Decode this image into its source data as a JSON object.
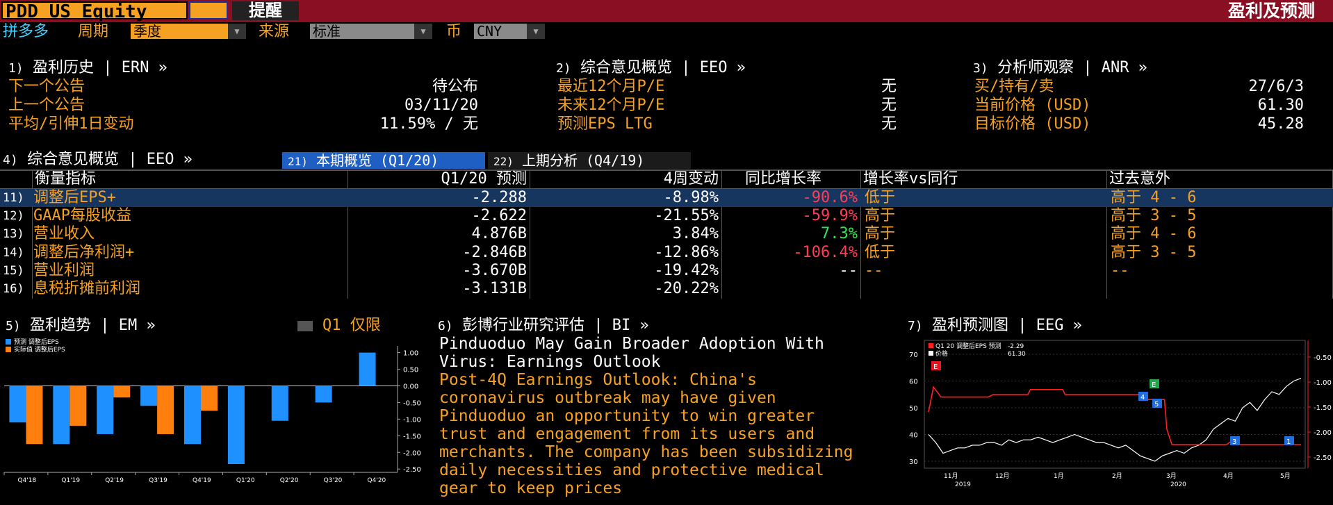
{
  "header": {
    "ticker": "PDD US Equity",
    "alert_button": "提醒",
    "page_title": "盈利及预测"
  },
  "filters": {
    "company": "拼多多",
    "period_label": "周期",
    "period_value": "季度",
    "source_label": "来源",
    "source_value": "标准",
    "currency_label": "币",
    "currency_value": "CNY"
  },
  "section1": {
    "num": "1)",
    "title": "盈利历史",
    "code": "ERN »",
    "rows": [
      {
        "label": "下一个公告",
        "value": "待公布"
      },
      {
        "label": "上一个公告",
        "value": "03/11/20"
      },
      {
        "label": "平均/引伸1日变动",
        "value": "11.59% / 无"
      }
    ]
  },
  "section2": {
    "num": "2)",
    "title": "综合意见概览",
    "code": "EEO »",
    "rows": [
      {
        "label": "最近12个月P/E",
        "value": "无"
      },
      {
        "label": "未来12个月P/E",
        "value": "无"
      },
      {
        "label": "预测EPS LTG",
        "value": "无"
      }
    ]
  },
  "section3": {
    "num": "3)",
    "title": "分析师观察",
    "code": "ANR »",
    "rows": [
      {
        "label": "买/持有/卖",
        "value": "27/6/3"
      },
      {
        "label": "当前价格 (USD)",
        "value": "61.30"
      },
      {
        "label": "目标价格 (USD)",
        "value": "45.28"
      }
    ]
  },
  "section4": {
    "num": "4)",
    "title": "综合意见概览",
    "code": "EEO »",
    "tabs": [
      {
        "num": "21)",
        "label": "本期概览 (Q1/20)"
      },
      {
        "num": "22)",
        "label": "上期分析 (Q4/19)"
      }
    ],
    "columns": [
      "衡量指标",
      "Q1/20 预测",
      "4周变动",
      "同比增长率",
      "增长率vs同行",
      "过去意外"
    ],
    "rows": [
      {
        "num": "11)",
        "metric": "调整后EPS+",
        "forecast": "-2.288",
        "chg4w": "-8.98%",
        "yoy": "-90.6%",
        "yoy_color": "red",
        "vs_peer": "低于",
        "surprise": "高于 4 - 6"
      },
      {
        "num": "12)",
        "metric": "GAAP每股收益",
        "forecast": "-2.622",
        "chg4w": "-21.55%",
        "yoy": "-59.9%",
        "yoy_color": "red",
        "vs_peer": "高于",
        "surprise": "高于 3 - 5"
      },
      {
        "num": "13)",
        "metric": "营业收入",
        "forecast": "4.876B",
        "chg4w": "3.84%",
        "yoy": "7.3%",
        "yoy_color": "green",
        "vs_peer": "高于",
        "surprise": "高于 4 - 6"
      },
      {
        "num": "14)",
        "metric": "调整后净利润+",
        "forecast": "-2.846B",
        "chg4w": "-12.86%",
        "yoy": "-106.4%",
        "yoy_color": "red",
        "vs_peer": "低于",
        "surprise": "高于 3 - 5"
      },
      {
        "num": "15)",
        "metric": "营业利润",
        "forecast": "-3.670B",
        "chg4w": "-19.42%",
        "yoy": "--",
        "yoy_color": "white",
        "vs_peer": "--",
        "surprise": "--"
      },
      {
        "num": "16)",
        "metric": "息税折摊前利润",
        "forecast": "-3.131B",
        "chg4w": "-20.22%",
        "yoy": "",
        "yoy_color": "white",
        "vs_peer": "",
        "surprise": ""
      }
    ]
  },
  "section5": {
    "num": "5)",
    "title": "盈利趋势",
    "code": "EM »",
    "toggle_label": "Q1 仅限",
    "chart_data": {
      "type": "bar",
      "categories": [
        "Q4'18",
        "Q1'19",
        "Q2'19",
        "Q3'19",
        "Q4'19",
        "Q1'20",
        "Q2'20",
        "Q3'20",
        "Q4'20"
      ],
      "series": [
        {
          "name": "预测 调整后EPS",
          "color": "#1e90ff",
          "values": [
            -1.1,
            -1.75,
            -1.45,
            -0.6,
            -1.75,
            -2.35,
            -1.05,
            -0.5,
            1.0
          ]
        },
        {
          "name": "实际值 调整后EPS",
          "color": "#ff7f0e",
          "values": [
            -1.75,
            -1.2,
            -0.35,
            -1.45,
            -0.75,
            null,
            null,
            null,
            null
          ]
        }
      ],
      "yticks": [
        "1.00",
        "0.50",
        "0.00",
        "-0.50",
        "-1.00",
        "-1.50",
        "-2.00",
        "-2.50"
      ],
      "ylim": [
        -2.6,
        1.2
      ]
    }
  },
  "section6": {
    "num": "6)",
    "title": "彭博行业研究评估",
    "code": "BI »",
    "headline": "Pinduoduo May Gain Broader Adoption With Virus: Earnings Outlook",
    "body": "Post-4Q Earnings Outlook: China's coronavirus outbreak may have given Pinduoduo an opportunity to win greater trust and engagement from its users and merchants. The company has been subsidizing daily necessities and protective medical gear to keep prices"
  },
  "section7": {
    "num": "7)",
    "title": "盈利预测图",
    "code": "EEG »",
    "chart_data": {
      "type": "line",
      "legend": [
        {
          "name": "Q1 20 调整后EPS 预测",
          "value": "-2.29",
          "color": "#ff2020"
        },
        {
          "name": "价格",
          "value": "61.30",
          "color": "#ffffff"
        }
      ],
      "left_ticks": [
        "70",
        "60",
        "50",
        "40",
        "30"
      ],
      "right_ticks": [
        "-0.50",
        "-1.00",
        "-1.50",
        "-2.00",
        "-2.50"
      ],
      "x_labels": [
        "11月",
        "12月",
        "1月",
        "2月",
        "3月",
        "4月",
        "5月"
      ],
      "year_labels": [
        "2019",
        "2020"
      ],
      "markers": [
        "E",
        "4",
        "5",
        "E",
        "3",
        "1"
      ]
    }
  }
}
